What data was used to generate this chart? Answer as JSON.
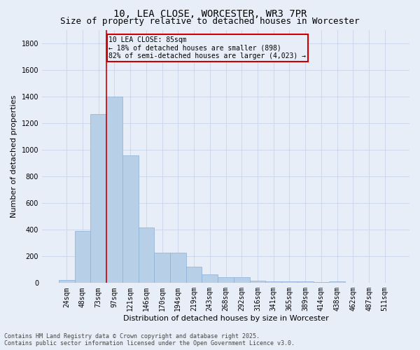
{
  "title": "10, LEA CLOSE, WORCESTER, WR3 7PR",
  "subtitle": "Size of property relative to detached houses in Worcester",
  "xlabel": "Distribution of detached houses by size in Worcester",
  "ylabel": "Number of detached properties",
  "categories": [
    "24sqm",
    "48sqm",
    "73sqm",
    "97sqm",
    "121sqm",
    "146sqm",
    "170sqm",
    "194sqm",
    "219sqm",
    "243sqm",
    "268sqm",
    "292sqm",
    "316sqm",
    "341sqm",
    "365sqm",
    "389sqm",
    "414sqm",
    "438sqm",
    "462sqm",
    "487sqm",
    "511sqm"
  ],
  "values": [
    25,
    390,
    1265,
    1400,
    960,
    415,
    230,
    230,
    120,
    65,
    45,
    45,
    15,
    10,
    10,
    10,
    5,
    10,
    0,
    0,
    0
  ],
  "bar_color": "#b8cfe8",
  "bar_edge_color": "#8ab0d8",
  "grid_color": "#c8d4e8",
  "bg_color": "#e8eef8",
  "vline_color": "#cc0000",
  "vline_x_index": 2.5,
  "annotation_line1": "10 LEA CLOSE: 85sqm",
  "annotation_line2": "← 18% of detached houses are smaller (898)",
  "annotation_line3": "82% of semi-detached houses are larger (4,023) →",
  "annotation_box_color": "#cc0000",
  "footnote_line1": "Contains HM Land Registry data © Crown copyright and database right 2025.",
  "footnote_line2": "Contains public sector information licensed under the Open Government Licence v3.0.",
  "ylim": [
    0,
    1900
  ],
  "yticks": [
    0,
    200,
    400,
    600,
    800,
    1000,
    1200,
    1400,
    1600,
    1800
  ],
  "title_fontsize": 10,
  "subtitle_fontsize": 9,
  "xlabel_fontsize": 8,
  "ylabel_fontsize": 8,
  "tick_fontsize": 7,
  "annotation_fontsize": 7,
  "footnote_fontsize": 6
}
